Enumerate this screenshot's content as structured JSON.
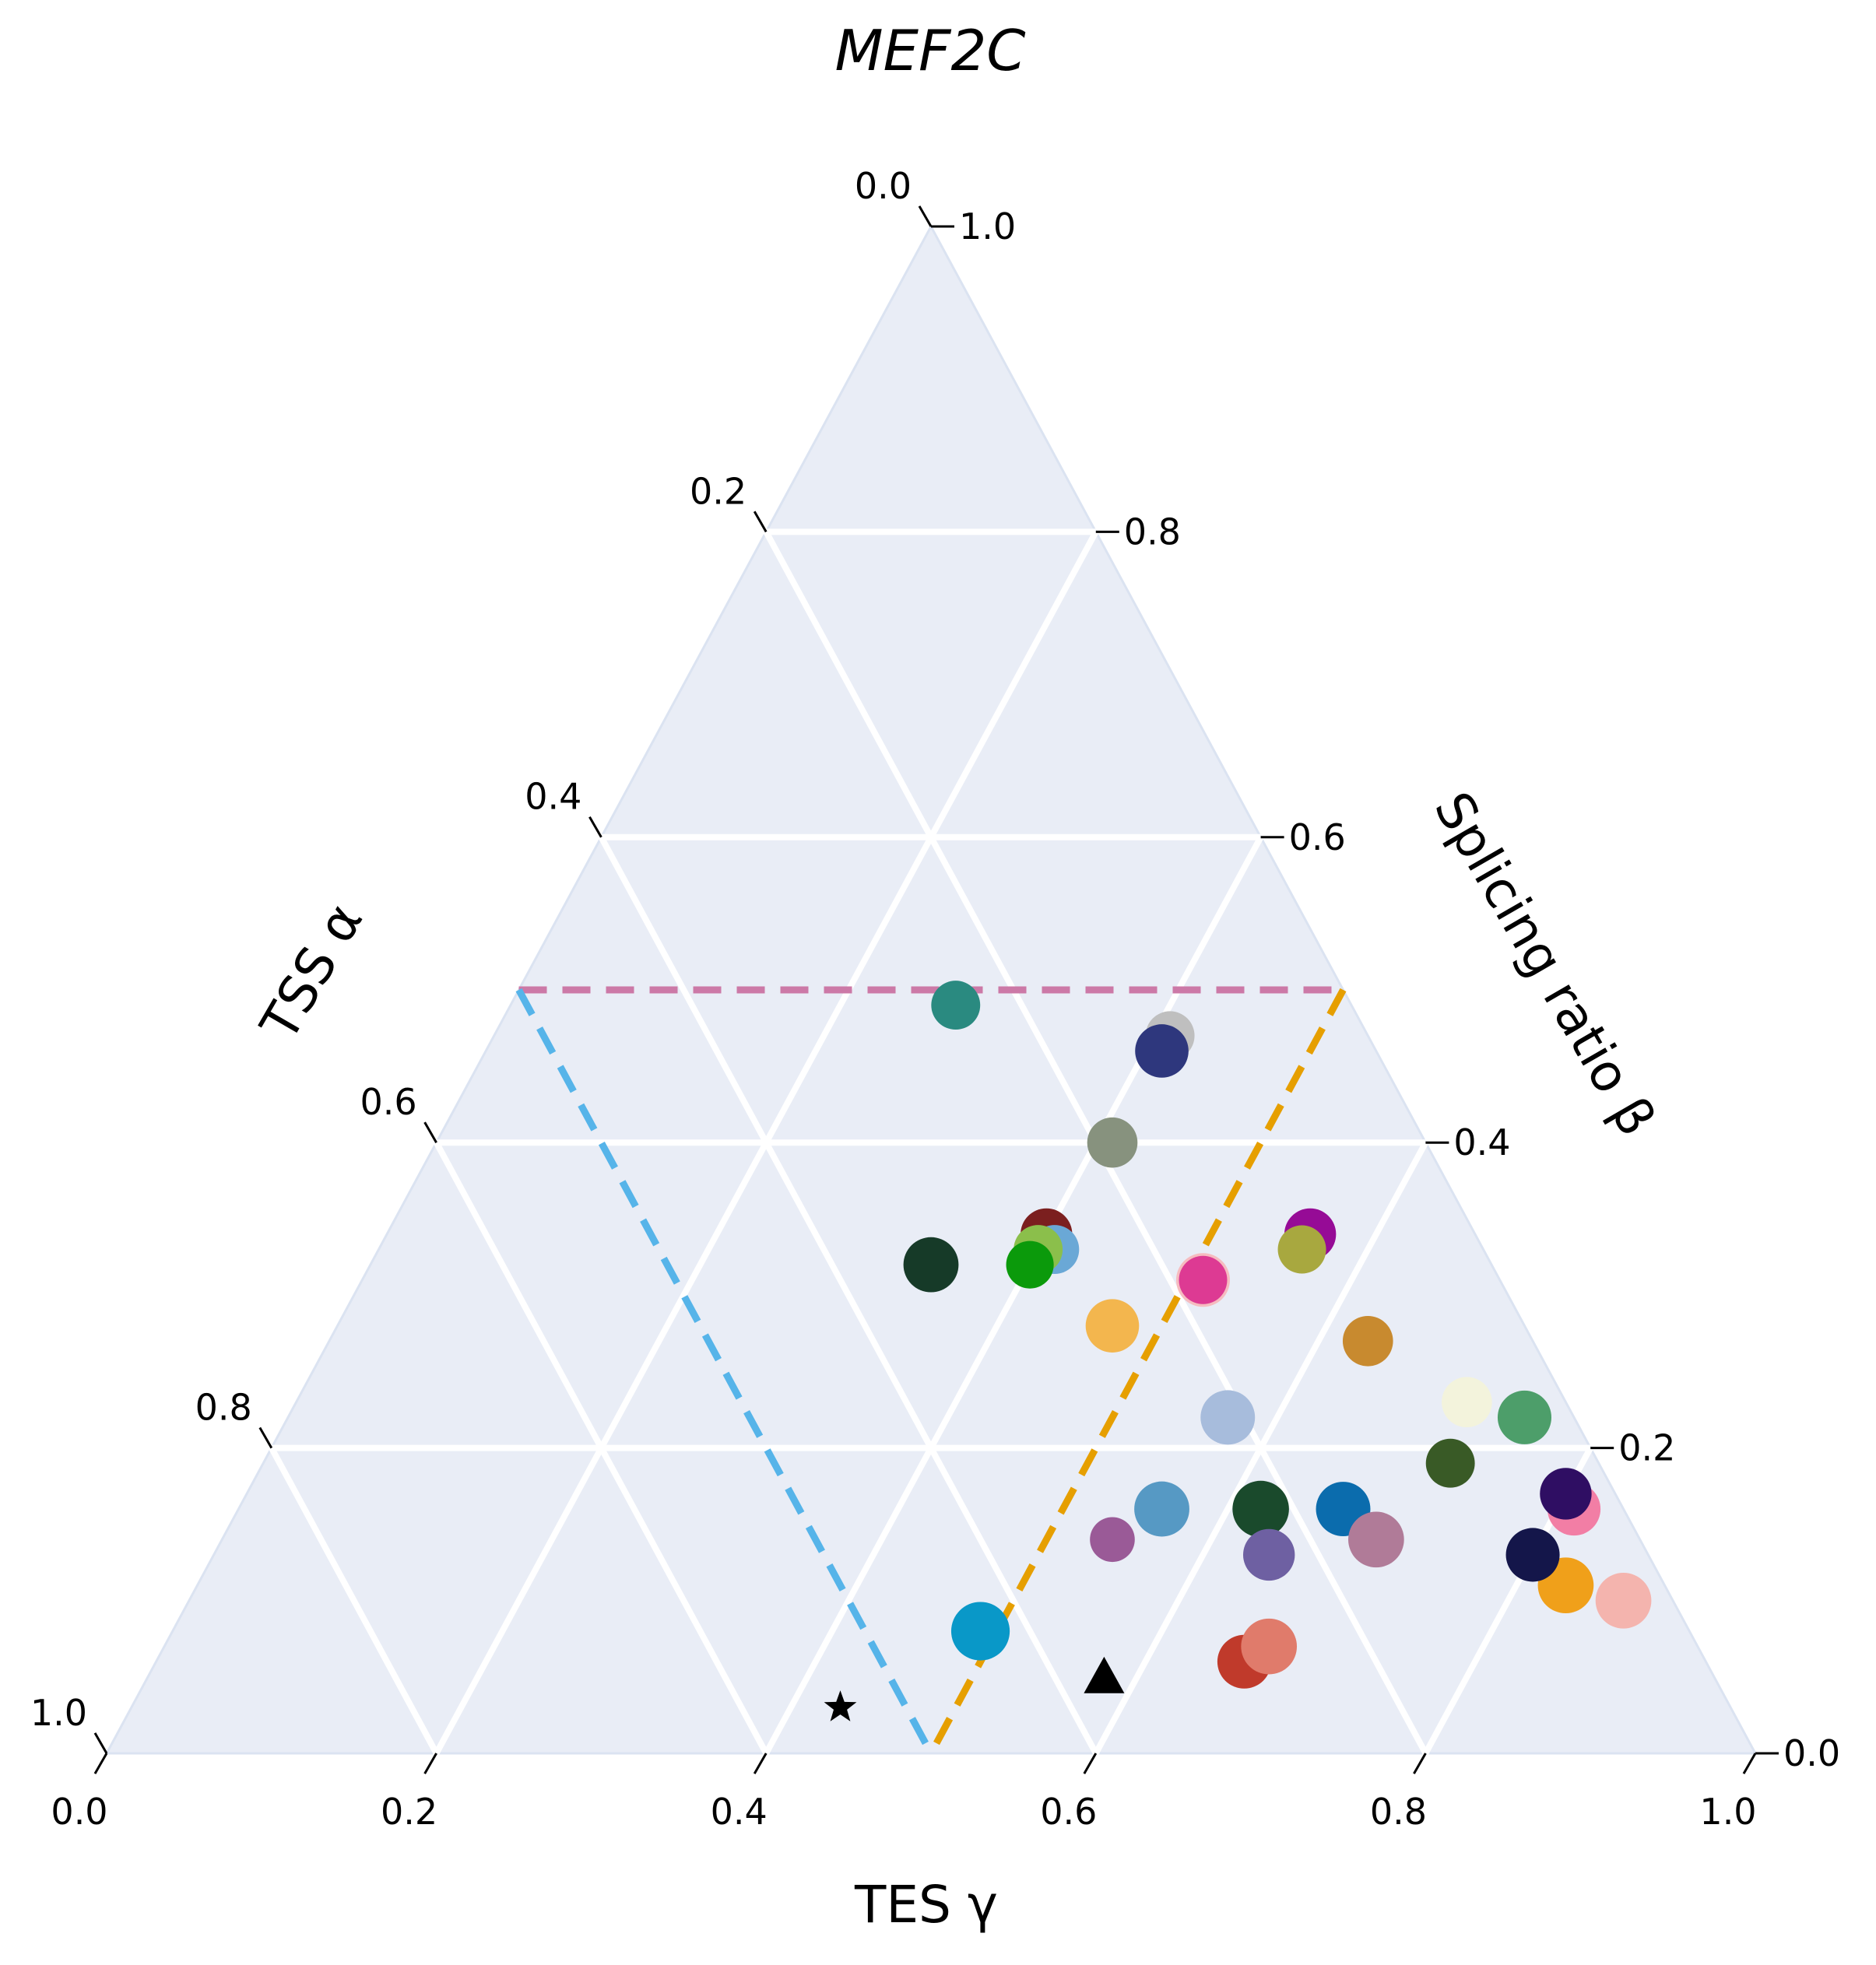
{
  "chart_data": {
    "type": "ternary-scatter",
    "title": "MEF2C",
    "axes": {
      "bottom": {
        "label": "TES γ",
        "ticks": [
          "0.0",
          "0.2",
          "0.4",
          "0.6",
          "0.8",
          "1.0"
        ]
      },
      "left": {
        "label": "TSS α",
        "ticks": [
          "0.0",
          "0.2",
          "0.4",
          "0.6",
          "0.8",
          "1.0"
        ]
      },
      "right": {
        "label": "Splicing ratio β",
        "ticks": [
          "1.0",
          "0.8",
          "0.6",
          "0.4",
          "0.2",
          "0.0"
        ]
      },
      "range": [
        0,
        1
      ]
    },
    "grid": true,
    "grid_step": 0.2,
    "background": "#e9edf6",
    "threshold_lines": [
      {
        "color": "#cc79a7",
        "style": "dashed",
        "path": [
          [
            0.5,
            0.5,
            0.0
          ],
          [
            0.0,
            0.5,
            0.5
          ]
        ]
      },
      {
        "color": "#56b4e9",
        "style": "dashed",
        "path": [
          [
            0.5,
            0.5,
            0.0
          ],
          [
            0.5,
            0.0,
            0.5
          ]
        ]
      },
      {
        "color": "#e69f00",
        "style": "dashed",
        "path": [
          [
            0.0,
            0.5,
            0.5
          ],
          [
            0.5,
            0.0,
            0.5
          ]
        ]
      }
    ],
    "markers": [
      {
        "symbol": "star",
        "alpha": 0.54,
        "beta": 0.03,
        "gamma": 0.43,
        "color": "#000000"
      },
      {
        "symbol": "triangle",
        "alpha": 0.37,
        "beta": 0.05,
        "gamma": 0.58,
        "color": "#000000"
      }
    ],
    "points": [
      {
        "alpha": 0.24,
        "beta": 0.49,
        "gamma": 0.27,
        "size": 0.52,
        "color": "#2a8a80"
      },
      {
        "alpha": 0.12,
        "beta": 0.47,
        "gamma": 0.41,
        "size": 0.52,
        "color": "#bfbfbf"
      },
      {
        "alpha": 0.13,
        "beta": 0.46,
        "gamma": 0.41,
        "size": 0.65,
        "color": "#2e377d"
      },
      {
        "alpha": 0.19,
        "beta": 0.4,
        "gamma": 0.41,
        "size": 0.56,
        "color": "#87927e"
      },
      {
        "alpha": 0.26,
        "beta": 0.34,
        "gamma": 0.4,
        "size": 0.6,
        "color": "#7b1f1f"
      },
      {
        "alpha": 0.26,
        "beta": 0.33,
        "gamma": 0.41,
        "size": 0.52,
        "color": "#6aa8d6"
      },
      {
        "alpha": 0.27,
        "beta": 0.33,
        "gamma": 0.4,
        "size": 0.52,
        "color": "#8bbf4b"
      },
      {
        "alpha": 0.28,
        "beta": 0.32,
        "gamma": 0.4,
        "size": 0.48,
        "color": "#0b9a0b"
      },
      {
        "alpha": 0.34,
        "beta": 0.32,
        "gamma": 0.34,
        "size": 0.7,
        "color": "#163a28"
      },
      {
        "alpha": 0.1,
        "beta": 0.34,
        "gamma": 0.56,
        "size": 0.6,
        "color": "#960b96"
      },
      {
        "alpha": 0.11,
        "beta": 0.33,
        "gamma": 0.56,
        "size": 0.5,
        "color": "#a8a83f"
      },
      {
        "alpha": 0.18,
        "beta": 0.31,
        "gamma": 0.51,
        "size": 0.66,
        "color": "#f6bcc0"
      },
      {
        "alpha": 0.18,
        "beta": 0.31,
        "gamma": 0.51,
        "size": 0.5,
        "color": "#dd3a93"
      },
      {
        "alpha": 0.25,
        "beta": 0.28,
        "gamma": 0.47,
        "size": 0.65,
        "color": "#f3b64e"
      },
      {
        "alpha": 0.1,
        "beta": 0.27,
        "gamma": 0.63,
        "size": 0.56,
        "color": "#c88a2f"
      },
      {
        "alpha": 0.06,
        "beta": 0.23,
        "gamma": 0.71,
        "size": 0.56,
        "color": "#f3f3dc"
      },
      {
        "alpha": 0.03,
        "beta": 0.22,
        "gamma": 0.75,
        "size": 0.66,
        "color": "#4d9e6a"
      },
      {
        "alpha": 0.21,
        "beta": 0.22,
        "gamma": 0.57,
        "size": 0.68,
        "color": "#a7bcdc"
      },
      {
        "alpha": 0.09,
        "beta": 0.19,
        "gamma": 0.72,
        "size": 0.52,
        "color": "#395a26"
      },
      {
        "alpha": 0.03,
        "beta": 0.16,
        "gamma": 0.81,
        "size": 0.64,
        "color": "#f27ea5"
      },
      {
        "alpha": 0.03,
        "beta": 0.17,
        "gamma": 0.8,
        "size": 0.6,
        "color": "#2f0e63"
      },
      {
        "alpha": 0.17,
        "beta": 0.16,
        "gamma": 0.67,
        "size": 0.68,
        "color": "#0b6cad"
      },
      {
        "alpha": 0.22,
        "beta": 0.16,
        "gamma": 0.62,
        "size": 0.74,
        "color": "#1a4a2c"
      },
      {
        "alpha": 0.28,
        "beta": 0.16,
        "gamma": 0.56,
        "size": 0.7,
        "color": "#5699c4"
      },
      {
        "alpha": 0.32,
        "beta": 0.14,
        "gamma": 0.54,
        "size": 0.4,
        "color": "#9a5a97"
      },
      {
        "alpha": 0.23,
        "beta": 0.13,
        "gamma": 0.64,
        "size": 0.6,
        "color": "#6e60a2"
      },
      {
        "alpha": 0.16,
        "beta": 0.14,
        "gamma": 0.7,
        "size": 0.72,
        "color": "#b07b98"
      },
      {
        "alpha": 0.06,
        "beta": 0.11,
        "gamma": 0.83,
        "size": 0.72,
        "color": "#f0a01a"
      },
      {
        "alpha": 0.07,
        "beta": 0.13,
        "gamma": 0.8,
        "size": 0.66,
        "color": "#14164a"
      },
      {
        "alpha": 0.03,
        "beta": 0.1,
        "gamma": 0.87,
        "size": 0.72,
        "color": "#f4b4ae"
      },
      {
        "alpha": 0.43,
        "beta": 0.08,
        "gamma": 0.49,
        "size": 0.8,
        "color": "#0998c8"
      },
      {
        "alpha": 0.28,
        "beta": 0.06,
        "gamma": 0.66,
        "size": 0.66,
        "color": "#c03a2b"
      },
      {
        "alpha": 0.26,
        "beta": 0.07,
        "gamma": 0.67,
        "size": 0.72,
        "color": "#e07b6b"
      }
    ]
  }
}
